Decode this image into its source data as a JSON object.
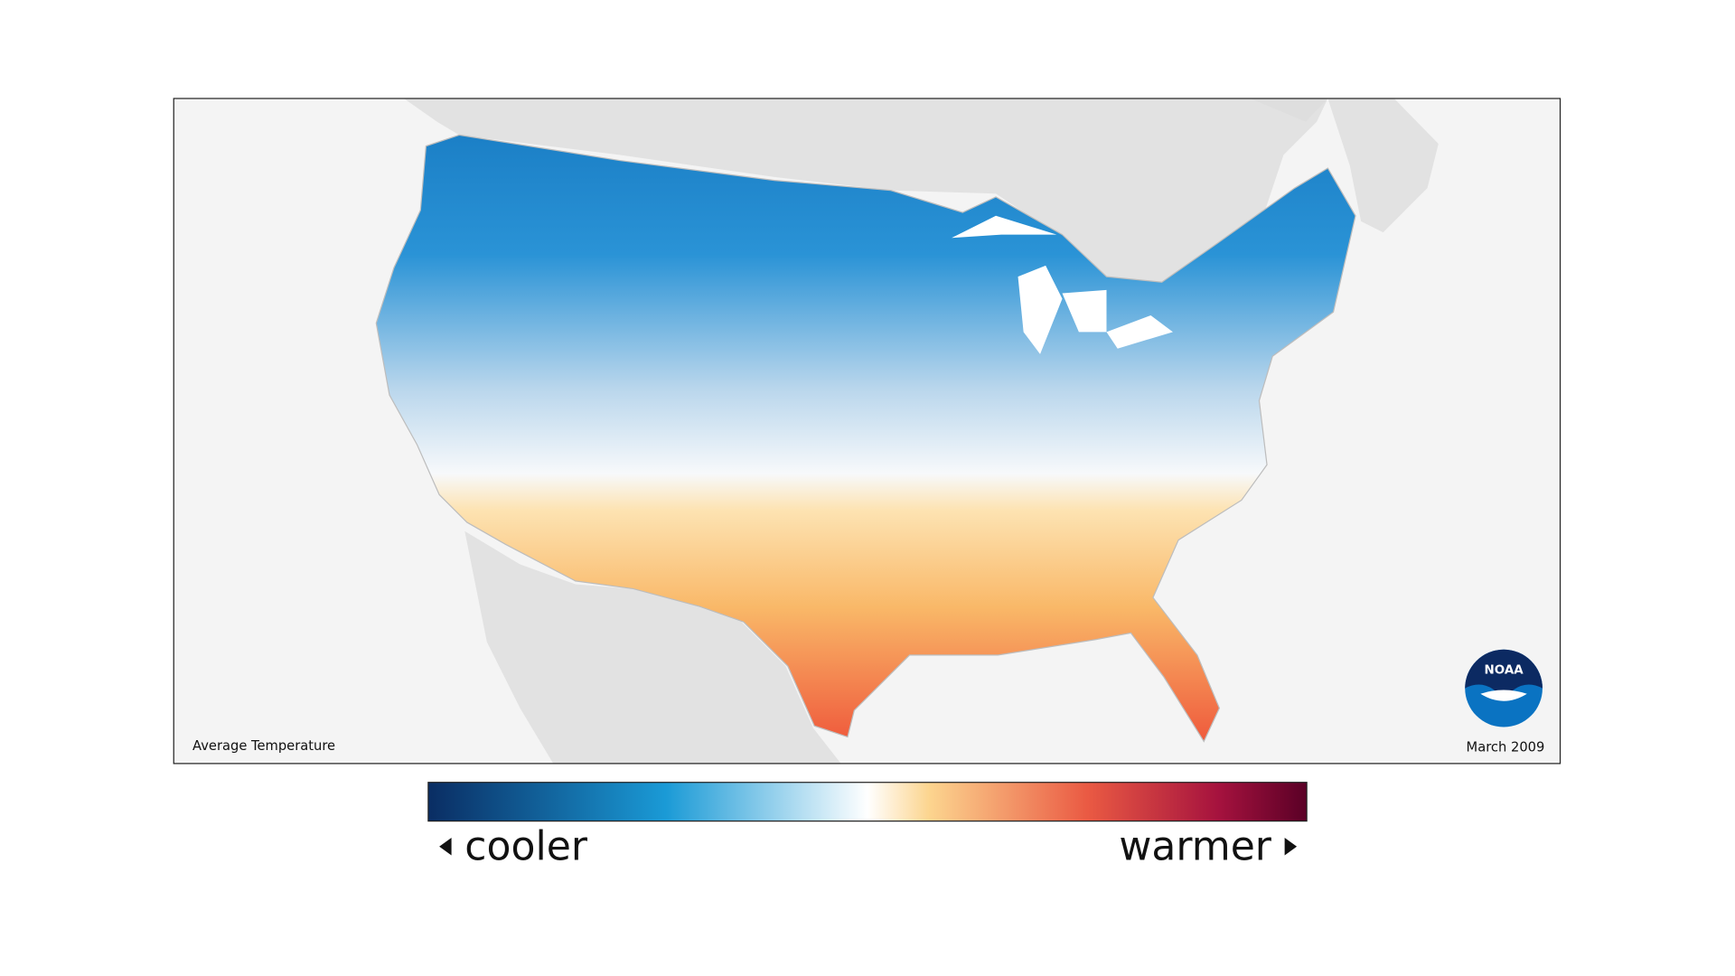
{
  "map": {
    "title": "Average Temperature",
    "date": "March 2009",
    "legend": {
      "low": "cooler",
      "high": "warmer"
    },
    "logo": "NOAA"
  }
}
